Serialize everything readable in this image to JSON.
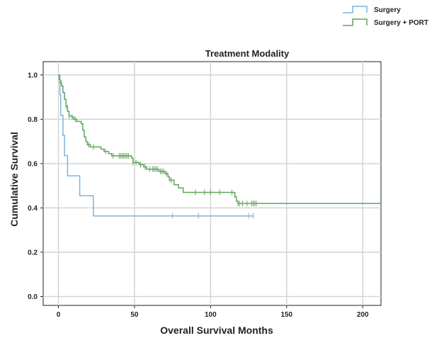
{
  "chart_data": {
    "type": "line",
    "title": "Treatment Modality",
    "xlabel": "Overall Survival Months",
    "ylabel": "Cumulative Survival",
    "xlim": [
      -10,
      212
    ],
    "ylim": [
      -0.04,
      1.06
    ],
    "xticks": [
      0,
      50,
      100,
      150,
      200
    ],
    "xtick_labels": [
      "0",
      "50",
      "100",
      "150",
      "200"
    ],
    "yticks": [
      0.0,
      0.2,
      0.4,
      0.6,
      0.8,
      1.0
    ],
    "ytick_labels": [
      "0.0",
      "0.2",
      "0.4",
      "0.6",
      "0.8",
      "1.0"
    ],
    "grid": true,
    "legend": "top-right",
    "series": [
      {
        "name": "Surgery",
        "color": "#7fb3d8",
        "steps": [
          [
            0,
            1.0
          ],
          [
            1,
            0.91
          ],
          [
            1.5,
            0.818
          ],
          [
            3,
            0.727
          ],
          [
            4,
            0.636
          ],
          [
            6,
            0.545
          ],
          [
            14,
            0.455
          ],
          [
            23,
            0.364
          ],
          [
            128,
            0.364
          ]
        ],
        "censored": [
          [
            75,
            0.364
          ],
          [
            92,
            0.364
          ],
          [
            125,
            0.364
          ],
          [
            128,
            0.364
          ]
        ]
      },
      {
        "name": "Surgery + PORT",
        "color": "#5fa55a",
        "steps": [
          [
            0,
            1.0
          ],
          [
            0.5,
            0.98
          ],
          [
            1,
            0.965
          ],
          [
            2,
            0.95
          ],
          [
            3,
            0.92
          ],
          [
            4,
            0.89
          ],
          [
            5,
            0.86
          ],
          [
            6,
            0.835
          ],
          [
            7,
            0.815
          ],
          [
            9,
            0.81
          ],
          [
            10,
            0.8
          ],
          [
            12,
            0.79
          ],
          [
            15,
            0.78
          ],
          [
            16,
            0.75
          ],
          [
            17,
            0.72
          ],
          [
            18,
            0.7
          ],
          [
            19,
            0.685
          ],
          [
            21,
            0.675
          ],
          [
            28,
            0.665
          ],
          [
            30,
            0.655
          ],
          [
            33,
            0.645
          ],
          [
            35,
            0.635
          ],
          [
            48,
            0.625
          ],
          [
            49,
            0.605
          ],
          [
            53,
            0.595
          ],
          [
            56,
            0.585
          ],
          [
            58,
            0.575
          ],
          [
            66,
            0.565
          ],
          [
            70,
            0.555
          ],
          [
            72,
            0.54
          ],
          [
            73,
            0.525
          ],
          [
            76,
            0.505
          ],
          [
            79,
            0.49
          ],
          [
            82,
            0.47
          ],
          [
            116,
            0.45
          ],
          [
            117,
            0.43
          ],
          [
            118,
            0.42
          ],
          [
            212,
            0.424
          ]
        ],
        "censored": [
          [
            2,
            0.965
          ],
          [
            5,
            0.86
          ],
          [
            7,
            0.815
          ],
          [
            9,
            0.81
          ],
          [
            11,
            0.8
          ],
          [
            20,
            0.685
          ],
          [
            23,
            0.675
          ],
          [
            31,
            0.655
          ],
          [
            36,
            0.635
          ],
          [
            40,
            0.635
          ],
          [
            41,
            0.635
          ],
          [
            42,
            0.635
          ],
          [
            43,
            0.635
          ],
          [
            44,
            0.635
          ],
          [
            45,
            0.635
          ],
          [
            46,
            0.635
          ],
          [
            49,
            0.605
          ],
          [
            51,
            0.605
          ],
          [
            54,
            0.595
          ],
          [
            57,
            0.585
          ],
          [
            60,
            0.575
          ],
          [
            62,
            0.575
          ],
          [
            63,
            0.575
          ],
          [
            64,
            0.575
          ],
          [
            65,
            0.575
          ],
          [
            67,
            0.565
          ],
          [
            68,
            0.565
          ],
          [
            69,
            0.565
          ],
          [
            71,
            0.555
          ],
          [
            74,
            0.525
          ],
          [
            90,
            0.47
          ],
          [
            96,
            0.47
          ],
          [
            100,
            0.47
          ],
          [
            106,
            0.47
          ],
          [
            114,
            0.47
          ],
          [
            118,
            0.42
          ],
          [
            119,
            0.42
          ],
          [
            121,
            0.42
          ],
          [
            124,
            0.42
          ],
          [
            127,
            0.42
          ],
          [
            128,
            0.42
          ],
          [
            129,
            0.42
          ],
          [
            130,
            0.42
          ]
        ]
      }
    ]
  }
}
